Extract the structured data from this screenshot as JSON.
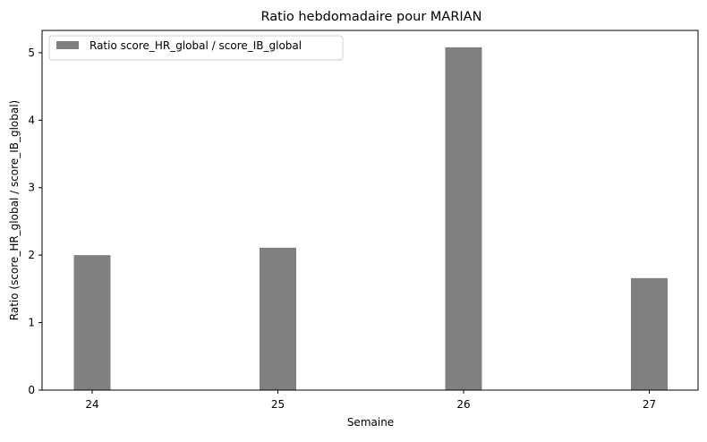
{
  "chart_data": {
    "type": "bar",
    "title": "Ratio hebdomadaire pour MARIAN",
    "xlabel": "Semaine",
    "ylabel": "Ratio (score_HR_global / score_IB_global)",
    "categories": [
      "24",
      "25",
      "26",
      "27"
    ],
    "series": [
      {
        "name": "Ratio score_HR_global / score_IB_global",
        "values": [
          2.0,
          2.11,
          5.08,
          1.66
        ],
        "color": "#808080"
      }
    ],
    "ylim": [
      0,
      5.33
    ],
    "yticks": [
      "0",
      "1",
      "2",
      "3",
      "4",
      "5"
    ],
    "grid": false,
    "legend_position": "top-left"
  }
}
